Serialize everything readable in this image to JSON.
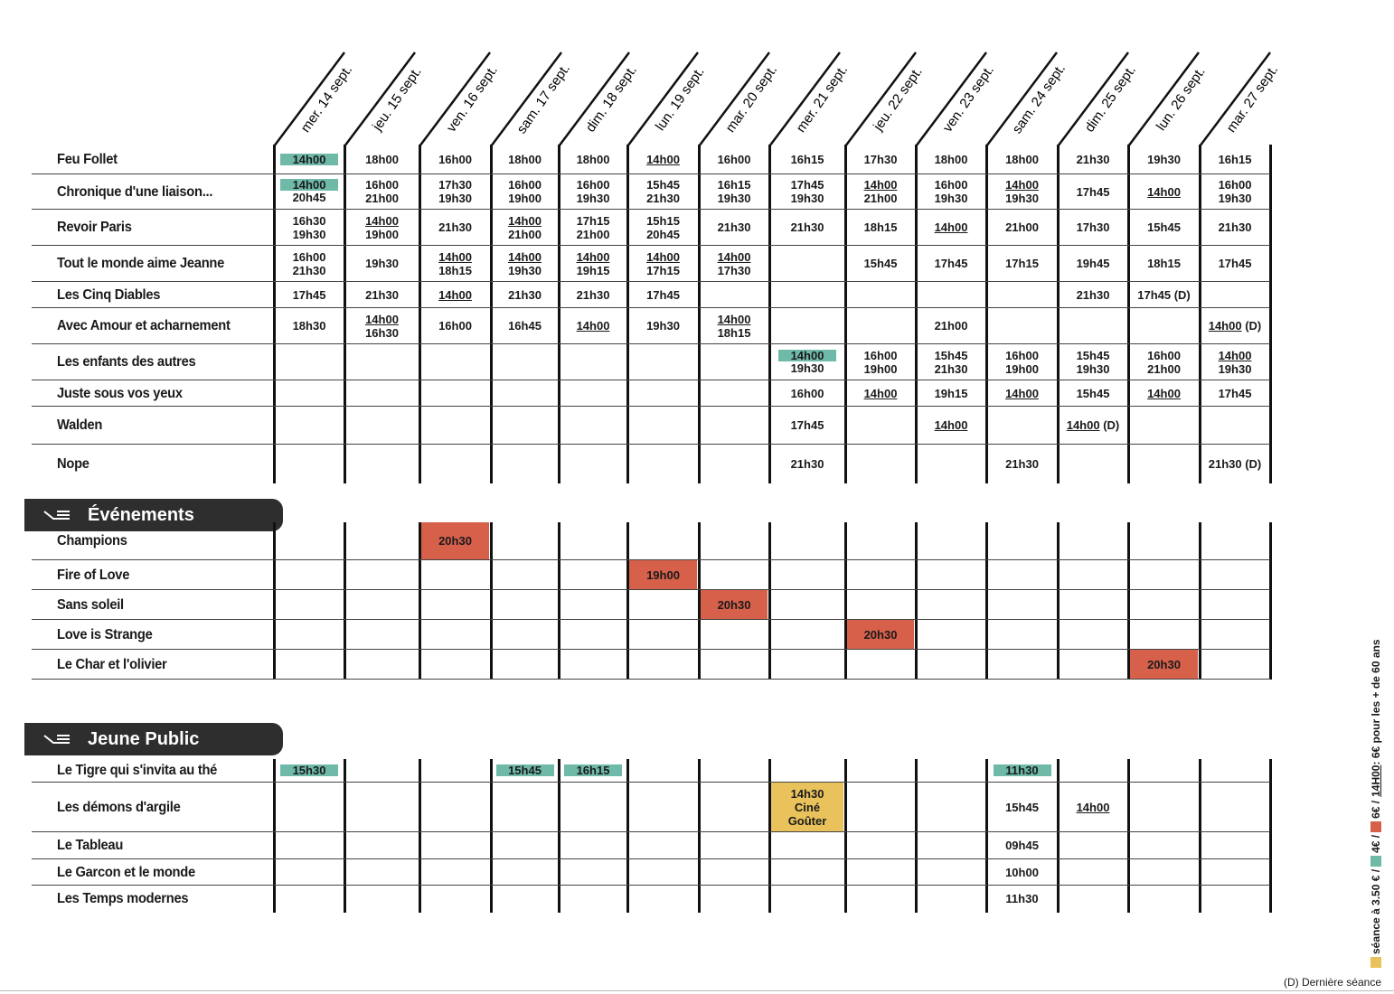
{
  "days": [
    "mer. 14 sept.",
    "jeu. 15 sept.",
    "ven. 16 sept.",
    "sam. 17 sept.",
    "dim. 18 sept.",
    "lun. 19 sept.",
    "mar. 20 sept.",
    "mer. 21 sept.",
    "jeu. 22 sept.",
    "ven. 23 sept.",
    "sam. 24 sept.",
    "dim. 25 sept.",
    "lun. 26 sept.",
    "mar. 27 sept."
  ],
  "colors": {
    "teal": "#6fb9a9",
    "red": "#d7604b",
    "yellow": "#e9c25c"
  },
  "sections": [
    {
      "rows": [
        {
          "title": "Feu Follet",
          "cells": [
            [
              {
                "text": "14h00",
                "style": "teal"
              }
            ],
            [
              "18h00"
            ],
            [
              "16h00"
            ],
            [
              "18h00"
            ],
            [
              "18h00"
            ],
            [
              {
                "text": "14h00",
                "style": "underline"
              }
            ],
            [
              "16h00"
            ],
            [
              "16h15"
            ],
            [
              "17h30"
            ],
            [
              "18h00"
            ],
            [
              "18h00"
            ],
            [
              "21h30"
            ],
            [
              "19h30"
            ],
            [
              "16h15"
            ]
          ]
        },
        {
          "title": "Chronique d'une liaison...",
          "cells": [
            [
              {
                "text": "14h00",
                "style": "teal"
              },
              "20h45"
            ],
            [
              "16h00",
              "21h00"
            ],
            [
              "17h30",
              "19h30"
            ],
            [
              "16h00",
              "19h00"
            ],
            [
              "16h00",
              "19h30"
            ],
            [
              "15h45",
              "21h30"
            ],
            [
              "16h15",
              "19h30"
            ],
            [
              "17h45",
              "19h30"
            ],
            [
              {
                "text": "14h00",
                "style": "underline"
              },
              "21h00"
            ],
            [
              "16h00",
              "19h30"
            ],
            [
              {
                "text": "14h00",
                "style": "underline"
              },
              "19h30"
            ],
            [
              "17h45"
            ],
            [
              {
                "text": "14h00",
                "style": "underline"
              }
            ],
            [
              "16h00",
              "19h30"
            ]
          ]
        },
        {
          "title": "Revoir Paris",
          "cells": [
            [
              "16h30",
              "19h30"
            ],
            [
              {
                "text": "14h00",
                "style": "underline"
              },
              "19h00"
            ],
            [
              "21h30"
            ],
            [
              {
                "text": "14h00",
                "style": "underline"
              },
              "21h00"
            ],
            [
              "17h15",
              "21h00"
            ],
            [
              "15h15",
              "20h45"
            ],
            [
              "21h30"
            ],
            [
              "21h30"
            ],
            [
              "18h15"
            ],
            [
              {
                "text": "14h00",
                "style": "underline"
              }
            ],
            [
              "21h00"
            ],
            [
              "17h30"
            ],
            [
              "15h45"
            ],
            [
              "21h30"
            ]
          ]
        },
        {
          "title": "Tout le monde aime Jeanne",
          "cells": [
            [
              "16h00",
              "21h30"
            ],
            [
              "19h30"
            ],
            [
              {
                "text": "14h00",
                "style": "underline"
              },
              "18h15"
            ],
            [
              {
                "text": "14h00",
                "style": "underline"
              },
              "19h30"
            ],
            [
              {
                "text": "14h00",
                "style": "underline"
              },
              "19h15"
            ],
            [
              {
                "text": "14h00",
                "style": "underline"
              },
              "17h15"
            ],
            [
              {
                "text": "14h00",
                "style": "underline"
              },
              "17h30"
            ],
            [],
            [
              "15h45"
            ],
            [
              "17h45"
            ],
            [
              "17h15"
            ],
            [
              "19h45"
            ],
            [
              "18h15"
            ],
            [
              "17h45"
            ]
          ]
        },
        {
          "title": "Les Cinq Diables",
          "cells": [
            [
              "17h45"
            ],
            [
              "21h30"
            ],
            [
              {
                "text": "14h00",
                "style": "underline"
              }
            ],
            [
              "21h30"
            ],
            [
              "21h30"
            ],
            [
              "17h45"
            ],
            [],
            [],
            [],
            [],
            [],
            [
              "21h30"
            ],
            [
              "17h45 (D)"
            ],
            []
          ]
        },
        {
          "title": "Avec Amour et acharnement",
          "cells": [
            [
              "18h30"
            ],
            [
              {
                "text": "14h00",
                "style": "underline"
              },
              "16h30"
            ],
            [
              "16h00"
            ],
            [
              "16h45"
            ],
            [
              {
                "text": "14h00",
                "style": "underline"
              }
            ],
            [
              "19h30"
            ],
            [
              {
                "text": "14h00",
                "style": "underline"
              },
              "18h15"
            ],
            [],
            [],
            [
              "21h00"
            ],
            [],
            [],
            [],
            [
              {
                "text": "14h00",
                "style": "underline",
                "note": "(D)"
              }
            ]
          ]
        },
        {
          "title": "Les enfants des autres",
          "cells": [
            [],
            [],
            [],
            [],
            [],
            [],
            [],
            [
              {
                "text": "14h00",
                "style": "teal"
              },
              "19h30"
            ],
            [
              "16h00",
              "19h00"
            ],
            [
              "15h45",
              "21h30"
            ],
            [
              "16h00",
              "19h00"
            ],
            [
              "15h45",
              "19h30"
            ],
            [
              "16h00",
              "21h00"
            ],
            [
              {
                "text": "14h00",
                "style": "underline"
              },
              "19h30"
            ]
          ]
        },
        {
          "title": "Juste sous vos yeux",
          "cells": [
            [],
            [],
            [],
            [],
            [],
            [],
            [],
            [
              "16h00"
            ],
            [
              {
                "text": "14h00",
                "style": "underline"
              }
            ],
            [
              "19h15"
            ],
            [
              {
                "text": "14h00",
                "style": "underline"
              }
            ],
            [
              "15h45"
            ],
            [
              {
                "text": "14h00",
                "style": "underline"
              }
            ],
            [
              "17h45"
            ]
          ]
        },
        {
          "title": "Walden",
          "cells": [
            [],
            [],
            [],
            [],
            [],
            [],
            [],
            [
              "17h45"
            ],
            [],
            [
              {
                "text": "14h00",
                "style": "underline"
              }
            ],
            [],
            [
              {
                "text": "14h00",
                "style": "underline",
                "note": "(D)"
              }
            ],
            [],
            []
          ]
        },
        {
          "title": "Nope",
          "cells": [
            [],
            [],
            [],
            [],
            [],
            [],
            [],
            [
              "21h30"
            ],
            [],
            [],
            [
              "21h30"
            ],
            [],
            [],
            [
              "21h30 (D)"
            ]
          ]
        }
      ]
    },
    {
      "title": "Événements",
      "rows": [
        {
          "title": "Champions",
          "cells": [
            [],
            [],
            [
              {
                "text": "20h30",
                "style": "red"
              }
            ],
            [],
            [],
            [],
            [],
            [],
            [],
            [],
            [],
            [],
            [],
            []
          ]
        },
        {
          "title": "Fire of Love",
          "cells": [
            [],
            [],
            [],
            [],
            [],
            [
              {
                "text": "19h00",
                "style": "red"
              }
            ],
            [],
            [],
            [],
            [],
            [],
            [],
            [],
            []
          ]
        },
        {
          "title": "Sans soleil",
          "cells": [
            [],
            [],
            [],
            [],
            [],
            [],
            [
              {
                "text": "20h30",
                "style": "red"
              }
            ],
            [],
            [],
            [],
            [],
            [],
            [],
            []
          ]
        },
        {
          "title": "Love is Strange",
          "cells": [
            [],
            [],
            [],
            [],
            [],
            [],
            [],
            [],
            [
              {
                "text": "20h30",
                "style": "red"
              }
            ],
            [],
            [],
            [],
            [],
            []
          ]
        },
        {
          "title": "Le Char et l'olivier",
          "cells": [
            [],
            [],
            [],
            [],
            [],
            [],
            [],
            [],
            [],
            [],
            [],
            [],
            [
              {
                "text": "20h30",
                "style": "red"
              }
            ],
            []
          ]
        }
      ]
    },
    {
      "title": "Jeune Public",
      "rows": [
        {
          "title": "Le Tigre qui s'invita au thé",
          "cells": [
            [
              {
                "text": "15h30",
                "style": "teal"
              }
            ],
            [],
            [],
            [
              {
                "text": "15h45",
                "style": "teal"
              }
            ],
            [
              {
                "text": "16h15",
                "style": "teal"
              }
            ],
            [],
            [],
            [],
            [],
            [],
            [
              {
                "text": "11h30",
                "style": "teal"
              }
            ],
            [],
            [],
            []
          ]
        },
        {
          "title": "Les démons d'argile",
          "cells": [
            [],
            [],
            [],
            [],
            [],
            [],
            [],
            [
              {
                "text": "14h30",
                "style": "yellow"
              },
              {
                "text": "Ciné",
                "style": "yellow"
              },
              {
                "text": "Goûter",
                "style": "yellow"
              }
            ],
            [],
            [],
            [
              "15h45"
            ],
            [
              {
                "text": "14h00",
                "style": "underline"
              }
            ],
            [],
            []
          ]
        },
        {
          "title": "Le Tableau",
          "cells": [
            [],
            [],
            [],
            [],
            [],
            [],
            [],
            [],
            [],
            [],
            [
              "09h45"
            ],
            [],
            [],
            []
          ]
        },
        {
          "title": "Le Garcon et le monde",
          "cells": [
            [],
            [],
            [],
            [],
            [],
            [],
            [],
            [],
            [],
            [],
            [
              "10h00"
            ],
            [],
            [],
            []
          ]
        },
        {
          "title": "Les Temps modernes",
          "cells": [
            [],
            [],
            [],
            [],
            [],
            [],
            [],
            [],
            [],
            [],
            [
              "11h30"
            ],
            [],
            [],
            []
          ]
        }
      ]
    }
  ],
  "legend": {
    "items": [
      {
        "style": "yellow",
        "text": "séance à 3.50 € /"
      },
      {
        "style": "teal",
        "text": "4€ /"
      },
      {
        "style": "red",
        "text": "6€ /"
      }
    ],
    "underlined": "14H00",
    "rest": ": 6€ pour les + de 60 ans",
    "footnote": "(D) Dernière séance"
  }
}
